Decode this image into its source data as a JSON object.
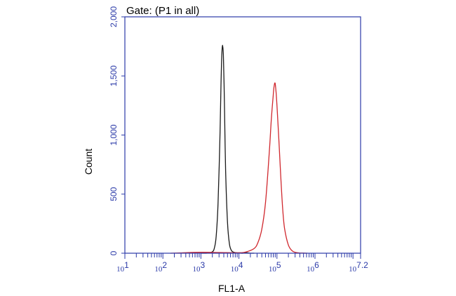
{
  "chart_data": {
    "type": "line",
    "title": "Gate: (P1 in all)",
    "xlabel": "FL1-A",
    "ylabel": "Count",
    "x_scale": "log",
    "xlim": [
      10,
      15848932
    ],
    "ylim": [
      0,
      2000
    ],
    "y_ticks": [
      0,
      500,
      1000,
      1500,
      2000
    ],
    "y_tick_labels": [
      "0",
      "500",
      "1,000",
      "1,500",
      "2,000"
    ],
    "x_ticks": [
      {
        "value": 10,
        "base": "10",
        "exp": "1"
      },
      {
        "value": 100,
        "base": "10",
        "exp": "2"
      },
      {
        "value": 1000,
        "base": "10",
        "exp": "3"
      },
      {
        "value": 10000,
        "base": "10",
        "exp": "4"
      },
      {
        "value": 100000,
        "base": "10",
        "exp": "5"
      },
      {
        "value": 1000000,
        "base": "10",
        "exp": "6"
      },
      {
        "value": 15848932,
        "base": "10",
        "exp": "7.2"
      }
    ],
    "grid": false,
    "legend": "none",
    "axis_color": "#2b3aa8",
    "series": [
      {
        "color": "#1a1a1a",
        "x": [
          1000,
          1259,
          1585,
          1995,
          2239,
          2512,
          2818,
          3162,
          3388,
          3548,
          3715,
          3890,
          4074,
          4266,
          4467,
          5012,
          5623,
          6310,
          7079,
          7943,
          10000,
          12589,
          15849,
          19953,
          25119
        ],
        "y": [
          0,
          0,
          2,
          12,
          40,
          140,
          420,
          980,
          1450,
          1680,
          1760,
          1680,
          1430,
          1050,
          700,
          260,
          80,
          25,
          10,
          5,
          2,
          0,
          4,
          0,
          0
        ]
      },
      {
        "color": "#d0282e",
        "x": [
          158,
          316,
          1000,
          3162,
          10000,
          15849,
          25119,
          31623,
          39811,
          50119,
          63096,
          70795,
          79433,
          83176,
          89125,
          95499,
          100000,
          112202,
          125893,
          141254,
          158489,
          199526,
          251189,
          316228,
          398107,
          501187,
          630957
        ],
        "y": [
          0,
          3,
          8,
          6,
          4,
          12,
          40,
          90,
          200,
          430,
          860,
          1120,
          1330,
          1400,
          1440,
          1350,
          1250,
          960,
          650,
          380,
          210,
          70,
          20,
          6,
          2,
          1,
          0
        ]
      }
    ]
  }
}
